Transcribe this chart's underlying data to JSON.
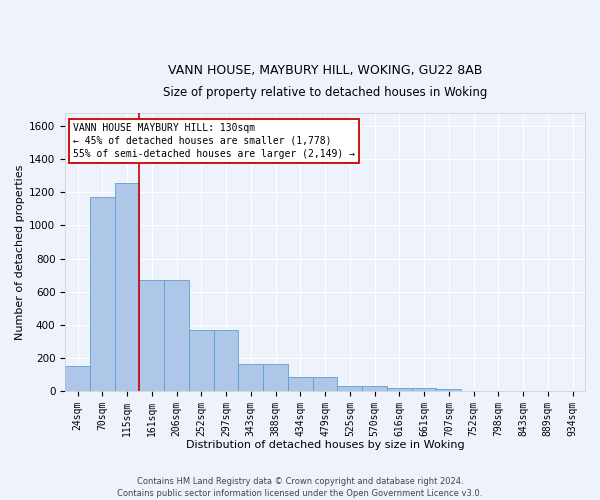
{
  "title1": "VANN HOUSE, MAYBURY HILL, WOKING, GU22 8AB",
  "title2": "Size of property relative to detached houses in Woking",
  "xlabel": "Distribution of detached houses by size in Woking",
  "ylabel": "Number of detached properties",
  "categories": [
    "24sqm",
    "70sqm",
    "115sqm",
    "161sqm",
    "206sqm",
    "252sqm",
    "297sqm",
    "343sqm",
    "388sqm",
    "434sqm",
    "479sqm",
    "525sqm",
    "570sqm",
    "616sqm",
    "661sqm",
    "707sqm",
    "752sqm",
    "798sqm",
    "843sqm",
    "889sqm",
    "934sqm"
  ],
  "values": [
    148,
    1170,
    1260,
    670,
    670,
    370,
    370,
    165,
    165,
    82,
    82,
    28,
    28,
    18,
    18,
    10,
    0,
    0,
    0,
    0,
    0
  ],
  "bar_color": "#aec6e8",
  "bar_edgecolor": "#5a9fd4",
  "background_color": "#eef3fb",
  "grid_color": "#ffffff",
  "vline_x": 2.5,
  "vline_color": "#cc0000",
  "annotation_text": "VANN HOUSE MAYBURY HILL: 130sqm\n← 45% of detached houses are smaller (1,778)\n55% of semi-detached houses are larger (2,149) →",
  "annotation_box_color": "#ffffff",
  "annotation_box_edgecolor": "#cc0000",
  "ylim": [
    0,
    1680
  ],
  "yticks": [
    0,
    200,
    400,
    600,
    800,
    1000,
    1200,
    1400,
    1600
  ],
  "footnote": "Contains HM Land Registry data © Crown copyright and database right 2024.\nContains public sector information licensed under the Open Government Licence v3.0.",
  "title1_fontsize": 9,
  "title2_fontsize": 8.5,
  "xlabel_fontsize": 8,
  "ylabel_fontsize": 8,
  "tick_fontsize": 7,
  "annot_fontsize": 7,
  "footnote_fontsize": 6
}
